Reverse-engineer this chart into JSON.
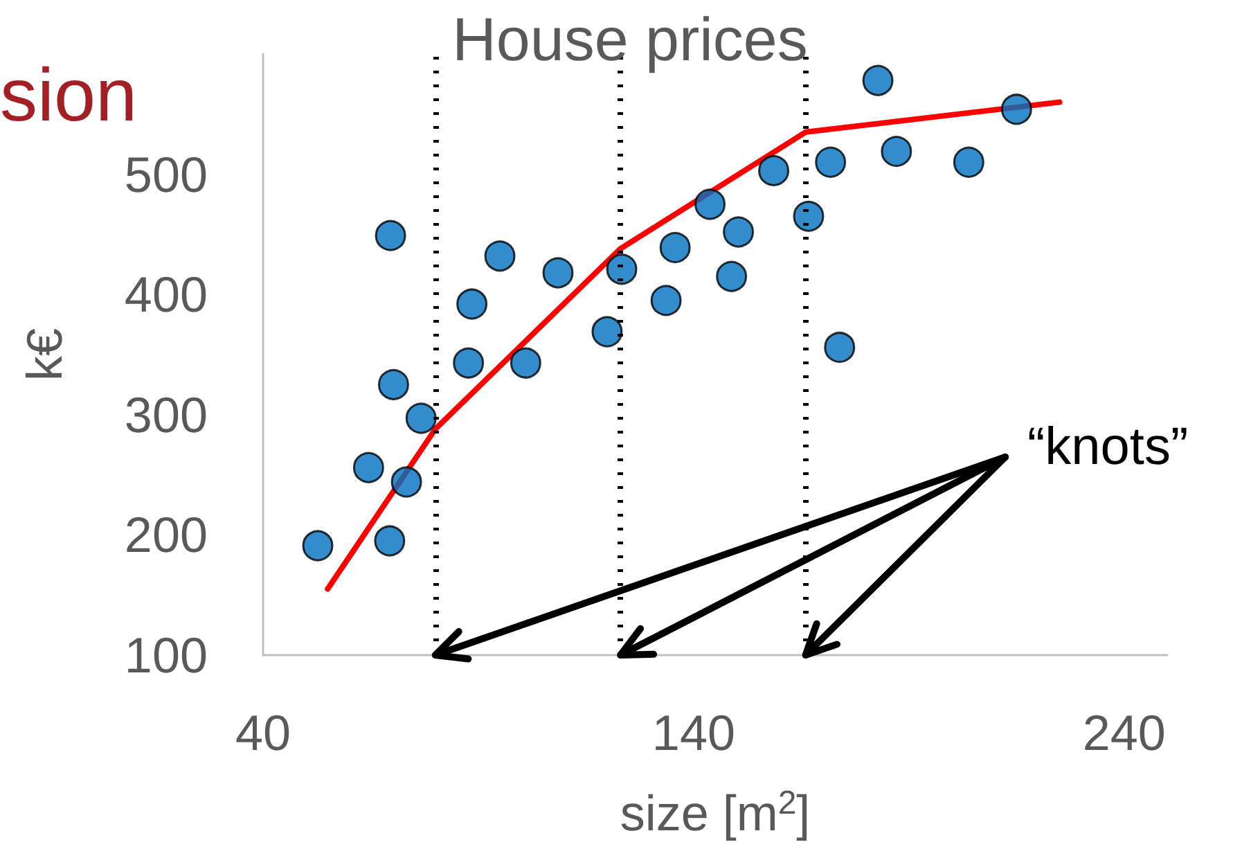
{
  "chart_data": {
    "type": "scatter",
    "title": "House prices",
    "xlabel": "size [m$^{2}$]",
    "ylabel": "k€",
    "annotations": [
      "sion",
      {
        "text": "“knots”",
        "x": 166,
        "y": 100
      }
    ],
    "xlim": [
      40,
      250
    ],
    "xticks": [
      40,
      140,
      240
    ],
    "ylim": [
      100,
      600
    ],
    "yticks": [
      100,
      200,
      300,
      400,
      500
    ],
    "grid": false,
    "marker": "circle",
    "ref_lines": [
      {
        "axis": "x",
        "value": 80,
        "color": "#000000",
        "line_style": "dotted"
      },
      {
        "axis": "x",
        "value": 123,
        "color": "#000000",
        "line_style": "dotted"
      },
      {
        "axis": "x",
        "value": 166,
        "color": "#000000",
        "line_style": "dotted"
      }
    ],
    "series": [
      {
        "type": "scatter",
        "color": "#0070c0",
        "x": [
          52.7,
          69.4,
          64.5,
          73.3,
          76.7,
          70.3,
          87.7,
          101,
          88.5,
          95,
          108.5,
          69.6,
          119.9,
          123.3,
          133.6,
          135.7,
          143.8,
          150.4,
          148.8,
          158.6,
          166.7,
          171.8,
          173.9,
          187.1,
          182.8,
          203.9,
          215
        ],
        "values": [
          191,
          195,
          256,
          244,
          297,
          325,
          343,
          343,
          392,
          432,
          418,
          449,
          369,
          421,
          395,
          439,
          475,
          452,
          415,
          503,
          465,
          510,
          356,
          519,
          578,
          510,
          554
        ]
      },
      {
        "type": "line",
        "color": "#ff0000",
        "marker": "none",
        "line_style": "solid",
        "x": [
          55,
          80,
          123,
          166,
          225
        ],
        "values": [
          155,
          288,
          438,
          535,
          560
        ]
      }
    ]
  }
}
